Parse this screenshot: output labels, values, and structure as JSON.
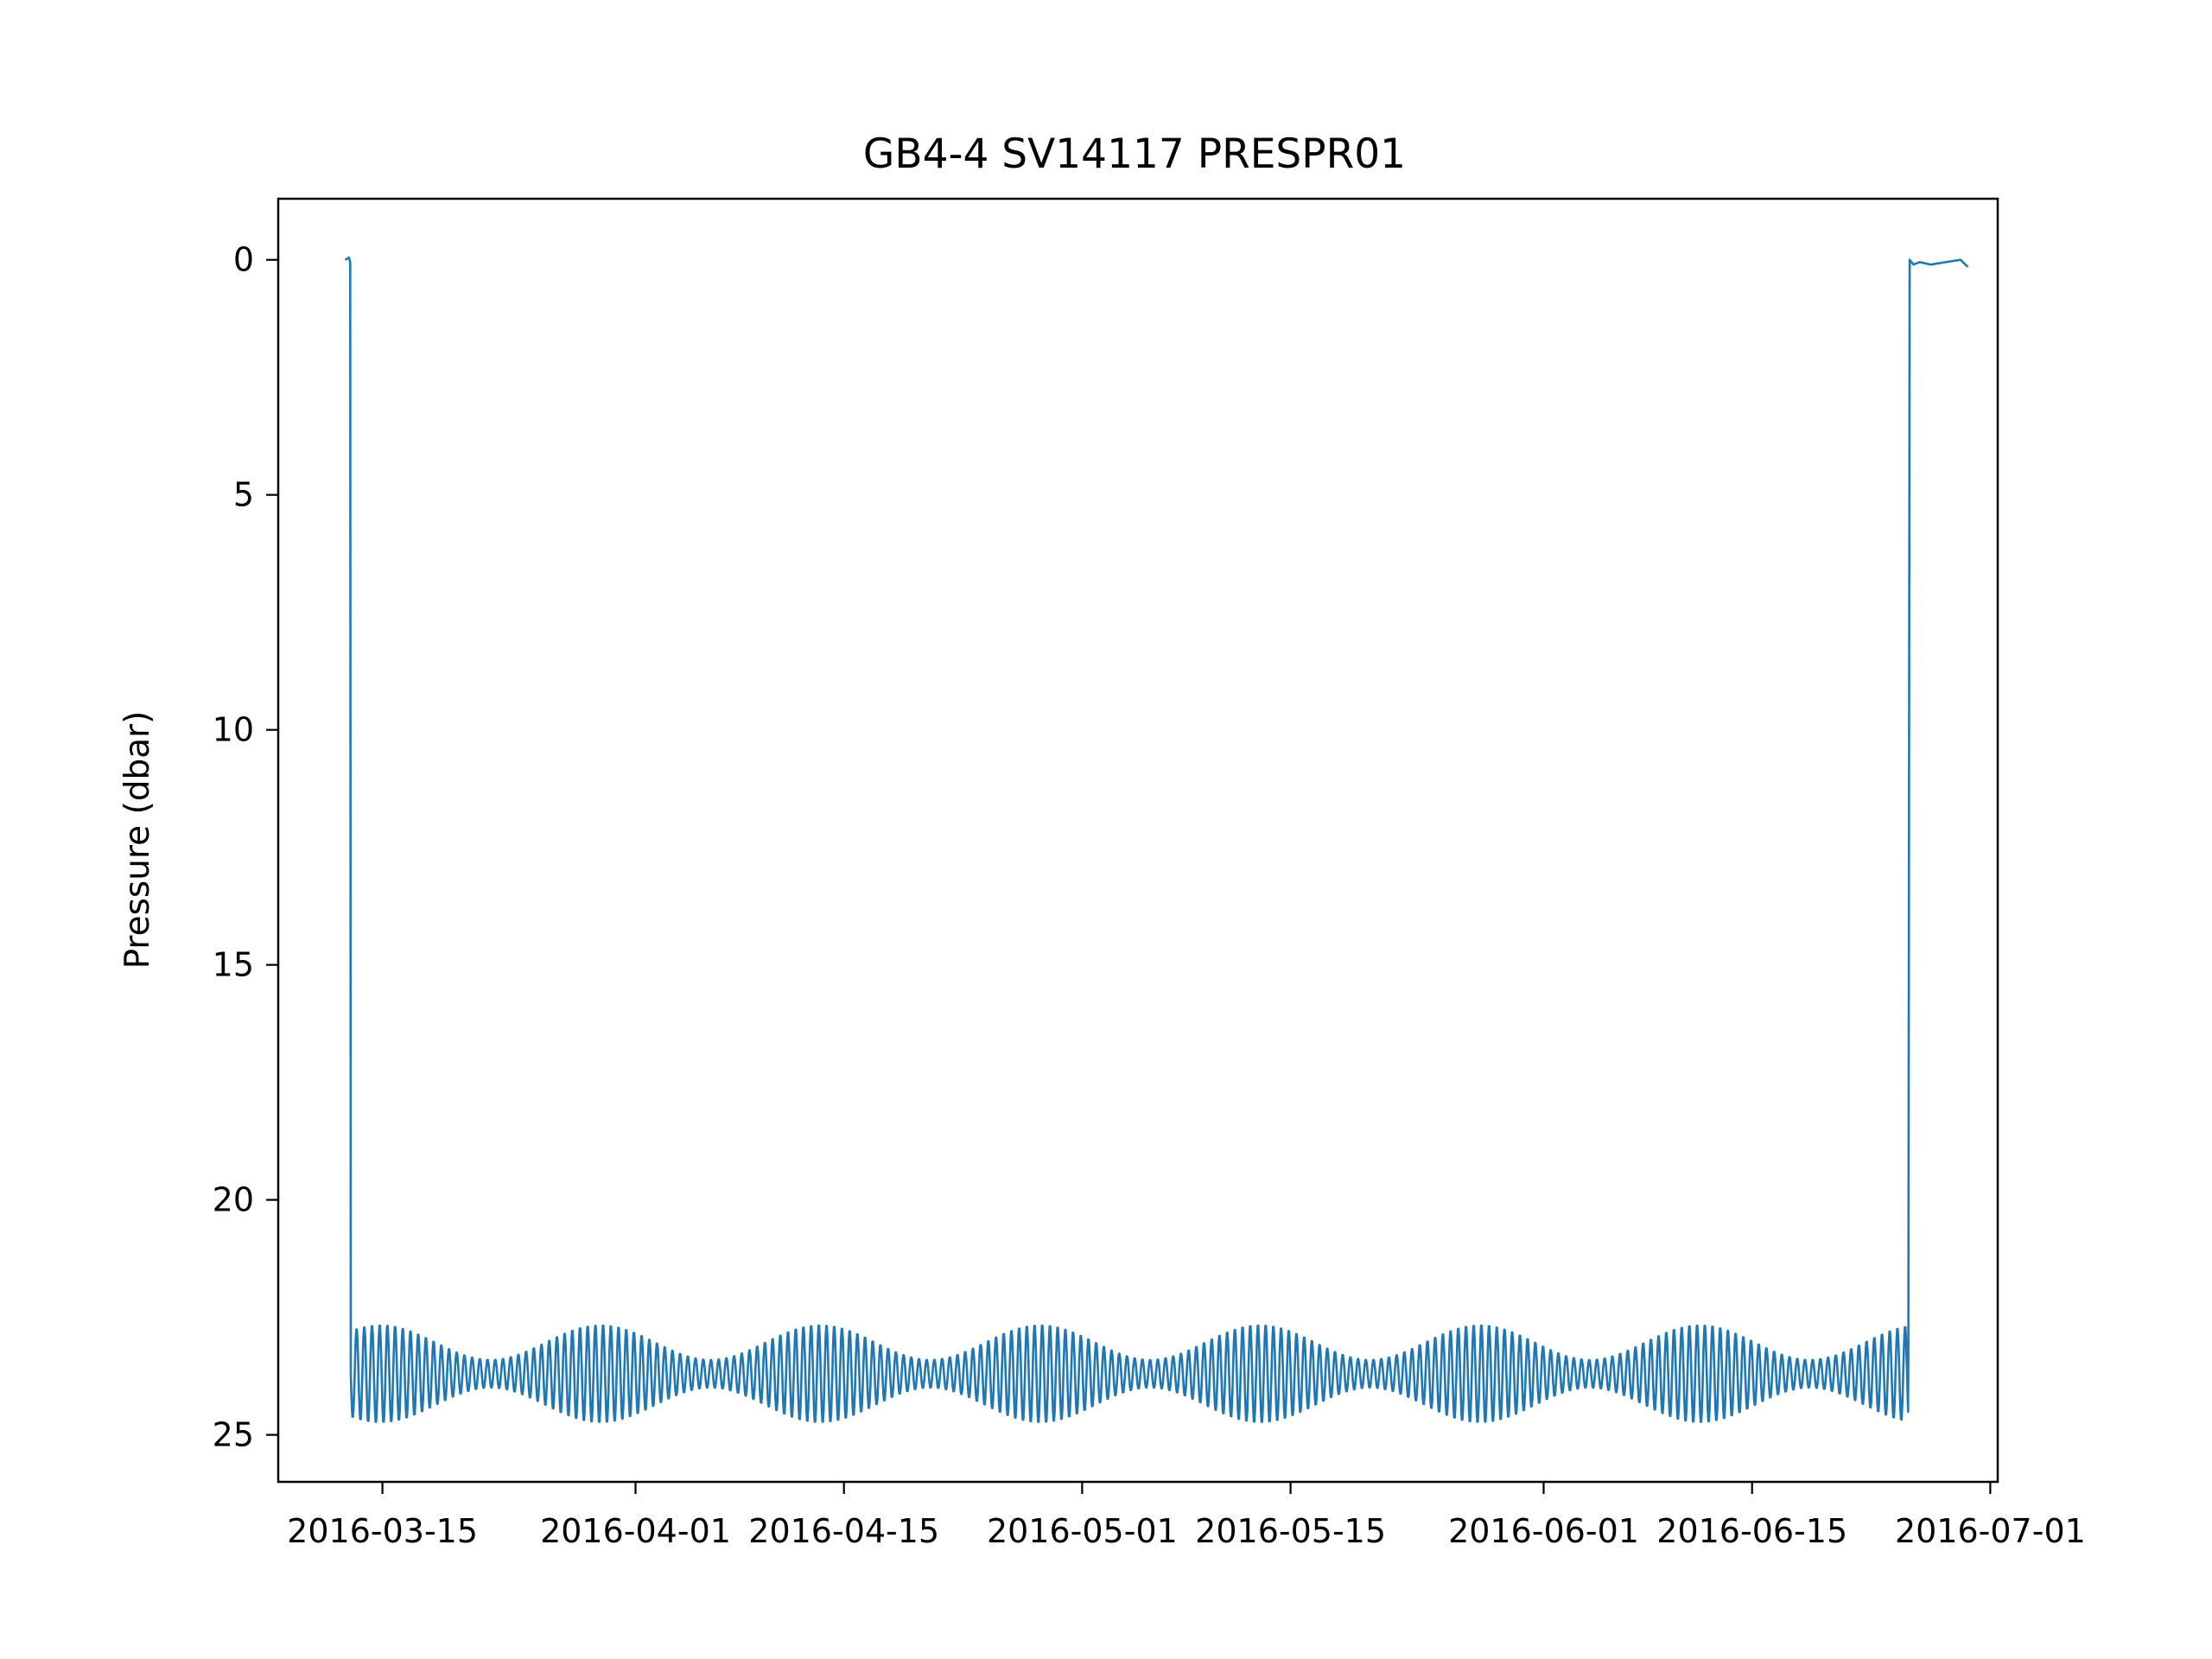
{
  "chart_data": {
    "type": "line",
    "title": "GB4-4 SV14117 PRESPR01",
    "xlabel": "",
    "ylabel": "Pressure (dbar)",
    "y_inverted": true,
    "ylim": [
      26,
      -1.3
    ],
    "xlim": [
      "2016-03-08",
      "2016-07-01T12:00"
    ],
    "grid": false,
    "legend": "none",
    "line_color": "#1f77b4",
    "x_ticks": [
      "2016-03-15",
      "2016-04-01",
      "2016-04-15",
      "2016-05-01",
      "2016-05-15",
      "2016-06-01",
      "2016-06-15",
      "2016-07-01"
    ],
    "y_ticks": [
      0,
      5,
      10,
      15,
      20,
      25
    ],
    "series": [
      {
        "segments": [
          {
            "x": [
              "2016-03-12T12:00",
              "2016-03-12T18:00",
              "2016-03-12T20:00"
            ],
            "y": [
              0.0,
              -0.05,
              0.05
            ]
          },
          {
            "x": [
              "2016-03-12T21:00",
              "2016-06-25T12:00"
            ],
            "tidal": true,
            "mean": 23.7,
            "period_hours": 12.42,
            "amplitude_range": [
              0.3,
              1.05
            ],
            "spring_neap_days": 14.77
          },
          {
            "x": [
              "2016-06-25T14:00",
              "2016-06-25T20:00",
              "2016-06-26T06:00",
              "2016-06-27T00:00",
              "2016-06-28T00:00",
              "2016-06-29T00:00",
              "2016-06-29T12:00"
            ],
            "y": [
              0.0,
              0.1,
              0.05,
              0.1,
              0.05,
              0.0,
              0.15
            ]
          }
        ]
      }
    ]
  }
}
